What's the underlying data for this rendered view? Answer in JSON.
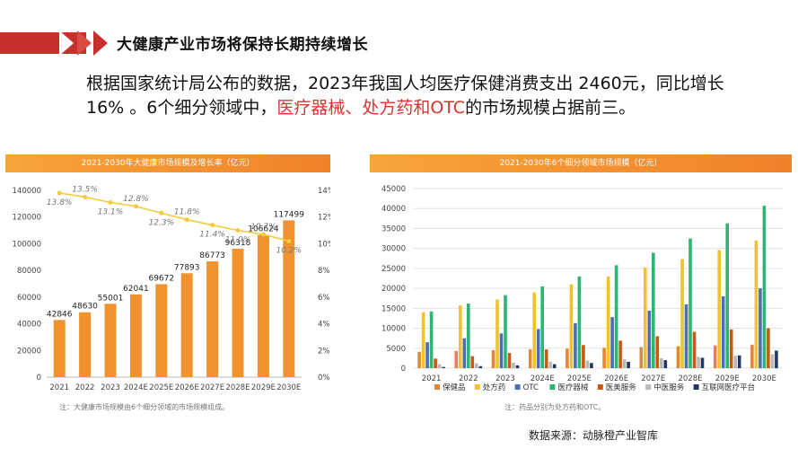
{
  "header": {
    "title": "大健康产业市场将保持长期持续增长"
  },
  "lead": {
    "part1": "根据国家统计局公布的数据，2023年我国人均医疗保健消费支出 2460元，同比增长 16% 。6个细分领域中，",
    "highlight": "医疗器械、处方药和OTC",
    "part2": "的市场规模占据前三。"
  },
  "left_panel": {
    "title": "2021-2030年大健康市场规模及增长率（亿元）",
    "note": "注：大健康市场规模由6个细分领域的市场规模组成。"
  },
  "right_panel": {
    "title": "2021-2030年6个细分领域市场规模（亿元）",
    "note": "注：药品分别为处方药和OTC。"
  },
  "source": "数据来源：动脉橙产业智库",
  "colors": {
    "accent": "#c8302c",
    "bar": "#f0922e",
    "line": "#f2cc3e",
    "highlight": "#d3362f"
  },
  "chart_data": [
    {
      "type": "bar",
      "title": "2021-2030年大健康市场规模及增长率（亿元）",
      "categories": [
        "2021",
        "2022",
        "2023",
        "2024E",
        "2025E",
        "2026E",
        "2027E",
        "2028E",
        "2029E",
        "2030E"
      ],
      "series": [
        {
          "type": "bar",
          "values": [
            42846,
            48630,
            55001,
            62041,
            69672,
            77893,
            86773,
            96318,
            106624,
            117499
          ]
        },
        {
          "type": "line",
          "axis": "right",
          "values": [
            13.8,
            13.5,
            13.1,
            12.8,
            12.3,
            11.8,
            11.4,
            11.0,
            10.7,
            10.2
          ],
          "labels": [
            "13.8%",
            "13.5%",
            "13.1%",
            "12.8%",
            "12.3%",
            "11.8%",
            "11.4%",
            "11.0%",
            "10.7%",
            "10.2%"
          ]
        }
      ],
      "yticks": [
        "0",
        "20000",
        "40000",
        "60000",
        "80000",
        "100000",
        "120000",
        "140000"
      ],
      "y2ticks": [
        "0%",
        "2%",
        "4%",
        "6%",
        "8%",
        "10%",
        "12%",
        "14%"
      ],
      "ylim": [
        0,
        140000
      ],
      "y2lim": [
        0,
        14
      ],
      "grid": false
    },
    {
      "type": "bar",
      "title": "2021-2030年6个细分领域市场规模（亿元）",
      "categories": [
        "2021",
        "2022",
        "2023",
        "2024E",
        "2025E",
        "2026E",
        "2027E",
        "2028E",
        "2029E",
        "2030E"
      ],
      "series": [
        {
          "name": "保健品",
          "color": "#e2873a",
          "values": [
            4100,
            4300,
            4500,
            4700,
            4900,
            5100,
            5300,
            5500,
            5700,
            5900
          ]
        },
        {
          "name": "处方药",
          "color": "#f2c12e",
          "values": [
            14000,
            15700,
            17200,
            19000,
            21000,
            23000,
            25200,
            27300,
            29600,
            32000
          ]
        },
        {
          "name": "OTC",
          "color": "#4a6fb5",
          "values": [
            6500,
            7500,
            8700,
            9800,
            11300,
            12800,
            14400,
            16000,
            18000,
            20000
          ]
        },
        {
          "name": "医疗器械",
          "color": "#2bb673",
          "values": [
            14200,
            16200,
            18300,
            20500,
            23000,
            25800,
            28900,
            32500,
            36300,
            40700
          ]
        },
        {
          "name": "医美服务",
          "color": "#c55a11",
          "values": [
            2400,
            3000,
            3800,
            4700,
            5800,
            6900,
            8000,
            9100,
            9700,
            10000
          ]
        },
        {
          "name": "中医服务",
          "color": "#b9b9b9",
          "values": [
            1000,
            1200,
            1400,
            1600,
            1900,
            2200,
            2500,
            2800,
            3100,
            3500
          ]
        },
        {
          "name": "互联网医疗平台",
          "color": "#1f3864",
          "values": [
            300,
            500,
            700,
            1000,
            1300,
            1600,
            2000,
            2600,
            3200,
            4400
          ]
        }
      ],
      "yticks": [
        "0",
        "5000",
        "10000",
        "15000",
        "20000",
        "25000",
        "30000",
        "35000",
        "40000",
        "45000"
      ],
      "ylim": [
        0,
        45000
      ],
      "grid": true,
      "legend": "bottom"
    }
  ]
}
